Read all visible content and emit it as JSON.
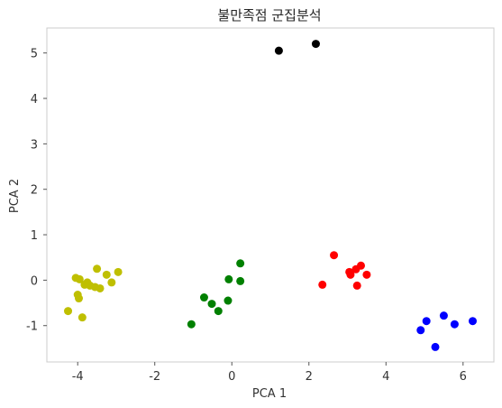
{
  "chart_data": {
    "type": "scatter",
    "title": "불만족점 군집분석",
    "xlabel": "PCA 1",
    "ylabel": "PCA 2",
    "xlim": [
      -4.8,
      6.8
    ],
    "ylim": [
      -1.8,
      5.55
    ],
    "grid": false,
    "xticks": [
      -4,
      -2,
      0,
      2,
      4,
      6
    ],
    "xtick_labels": [
      "-4",
      "-2",
      "0",
      "2",
      "4",
      "6"
    ],
    "yticks": [
      -1,
      0,
      1,
      2,
      3,
      4,
      5
    ],
    "ytick_labels": [
      "-1",
      "0",
      "1",
      "2",
      "3",
      "4",
      "5"
    ],
    "series": [
      {
        "color": "#bfbf00",
        "points": [
          [
            -4.25,
            -0.68
          ],
          [
            -4.05,
            0.05
          ],
          [
            -3.95,
            0.02
          ],
          [
            -4.0,
            -0.32
          ],
          [
            -3.97,
            -0.4
          ],
          [
            -3.88,
            -0.82
          ],
          [
            -3.82,
            -0.1
          ],
          [
            -3.75,
            -0.05
          ],
          [
            -3.68,
            -0.12
          ],
          [
            -3.55,
            -0.15
          ],
          [
            -3.5,
            0.25
          ],
          [
            -3.42,
            -0.18
          ],
          [
            -3.25,
            0.12
          ],
          [
            -3.12,
            -0.05
          ],
          [
            -2.95,
            0.18
          ]
        ]
      },
      {
        "color": "#008000",
        "points": [
          [
            -1.05,
            -0.97
          ],
          [
            -0.72,
            -0.38
          ],
          [
            -0.52,
            -0.52
          ],
          [
            -0.35,
            -0.68
          ],
          [
            -0.1,
            -0.45
          ],
          [
            -0.08,
            0.02
          ],
          [
            0.22,
            0.37
          ],
          [
            0.22,
            -0.02
          ]
        ]
      },
      {
        "color": "#ff0000",
        "points": [
          [
            2.35,
            -0.1
          ],
          [
            2.65,
            0.55
          ],
          [
            3.05,
            0.18
          ],
          [
            3.08,
            0.12
          ],
          [
            3.22,
            0.24
          ],
          [
            3.25,
            -0.12
          ],
          [
            3.35,
            0.32
          ],
          [
            3.5,
            0.12
          ]
        ]
      },
      {
        "color": "#0000ff",
        "points": [
          [
            4.9,
            -1.1
          ],
          [
            5.05,
            -0.9
          ],
          [
            5.28,
            -1.47
          ],
          [
            5.5,
            -0.78
          ],
          [
            5.78,
            -0.97
          ],
          [
            6.25,
            -0.9
          ]
        ]
      },
      {
        "color": "#000000",
        "points": [
          [
            1.22,
            5.05
          ],
          [
            2.18,
            5.2
          ]
        ]
      }
    ]
  }
}
